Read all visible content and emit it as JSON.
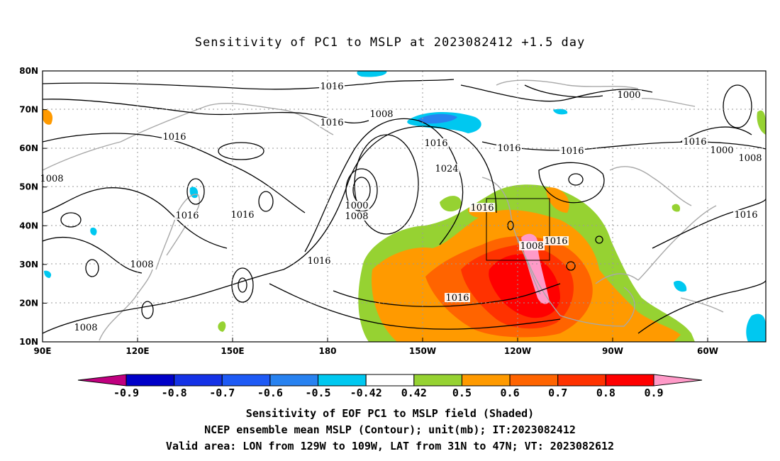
{
  "title": "Sensitivity of PC1 to MSLP at 2023082412 +1.5 day",
  "axes": {
    "lat_ticks": [
      "80N",
      "70N",
      "60N",
      "50N",
      "40N",
      "30N",
      "20N",
      "10N"
    ],
    "lon_ticks": [
      "90E",
      "120E",
      "150E",
      "180",
      "150W",
      "120W",
      "90W",
      "60W"
    ]
  },
  "contour_labels": [
    "1016",
    "1016",
    "1016",
    "1008",
    "1016",
    "1016",
    "1024",
    "1000",
    "1008",
    "1016",
    "1016",
    "1008",
    "1016",
    "1016",
    "1000",
    "1016",
    "1000",
    "1008",
    "1016",
    "1016",
    "1016",
    "1008",
    "1008",
    "1008",
    "1016"
  ],
  "colorbar": {
    "ticks": [
      "-0.9",
      "-0.8",
      "-0.7",
      "-0.6",
      "-0.5",
      "-0.42",
      "0.42",
      "0.5",
      "0.6",
      "0.7",
      "0.8",
      "0.9"
    ],
    "colors": [
      "#c0007f",
      "#0000c8",
      "#1432e6",
      "#1e5af5",
      "#2882f0",
      "#00c8f0",
      "#ffffff",
      "#96d232",
      "#ff9a00",
      "#ff6400",
      "#ff3200",
      "#ff0000",
      "#ff9ac8"
    ]
  },
  "captions": {
    "line1": "Sensitivity of EOF PC1 to MSLP field (Shaded)",
    "line2": "NCEP ensemble mean MSLP (Contour); unit(mb); IT:2023082412",
    "line3": "Valid area: LON from 129W to 109W, LAT from 31N to 47N; VT: 2023082612"
  }
}
